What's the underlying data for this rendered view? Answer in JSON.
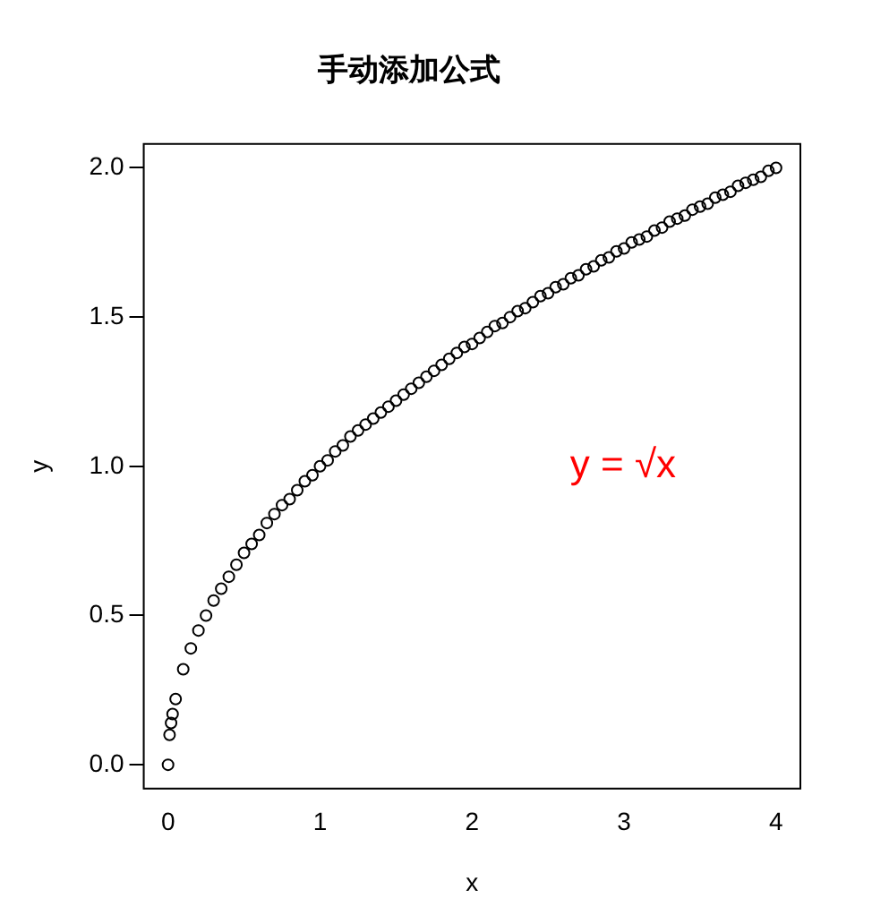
{
  "chart_data": {
    "type": "scatter",
    "title": "手动添加公式",
    "xlabel": "x",
    "ylabel": "y",
    "x": [
      0,
      0.01,
      0.02,
      0.03,
      0.05,
      0.1,
      0.15,
      0.2,
      0.25,
      0.3,
      0.35,
      0.4,
      0.45,
      0.5,
      0.55,
      0.6,
      0.65,
      0.7,
      0.75,
      0.8,
      0.85,
      0.9,
      0.95,
      1,
      1.05,
      1.1,
      1.15,
      1.2,
      1.25,
      1.3,
      1.35,
      1.4,
      1.45,
      1.5,
      1.55,
      1.6,
      1.65,
      1.7,
      1.75,
      1.8,
      1.85,
      1.9,
      1.95,
      2,
      2.05,
      2.1,
      2.15,
      2.2,
      2.25,
      2.3,
      2.35,
      2.4,
      2.45,
      2.5,
      2.55,
      2.6,
      2.65,
      2.7,
      2.75,
      2.8,
      2.85,
      2.9,
      2.95,
      3,
      3.05,
      3.1,
      3.15,
      3.2,
      3.25,
      3.3,
      3.35,
      3.4,
      3.45,
      3.5,
      3.55,
      3.6,
      3.65,
      3.7,
      3.75,
      3.8,
      3.85,
      3.9,
      3.95,
      4
    ],
    "series": [
      {
        "color": "#000000",
        "values": [
          0,
          0.1,
          0.14,
          0.17,
          0.22,
          0.32,
          0.39,
          0.45,
          0.5,
          0.55,
          0.59,
          0.63,
          0.67,
          0.71,
          0.74,
          0.77,
          0.81,
          0.84,
          0.87,
          0.89,
          0.92,
          0.95,
          0.97,
          1,
          1.02,
          1.05,
          1.07,
          1.1,
          1.12,
          1.14,
          1.16,
          1.18,
          1.2,
          1.22,
          1.24,
          1.26,
          1.28,
          1.3,
          1.32,
          1.34,
          1.36,
          1.38,
          1.4,
          1.41,
          1.43,
          1.45,
          1.47,
          1.48,
          1.5,
          1.52,
          1.53,
          1.55,
          1.57,
          1.58,
          1.6,
          1.61,
          1.63,
          1.64,
          1.66,
          1.67,
          1.69,
          1.7,
          1.72,
          1.73,
          1.75,
          1.76,
          1.77,
          1.79,
          1.8,
          1.82,
          1.83,
          1.84,
          1.86,
          1.87,
          1.88,
          1.9,
          1.91,
          1.92,
          1.94,
          1.95,
          1.96,
          1.97,
          1.99,
          2
        ]
      }
    ],
    "marker": "circle",
    "xlim": [
      -0.16,
      4.16
    ],
    "xticks": [
      0,
      1,
      2,
      3,
      4
    ],
    "ylim": [
      -0.08,
      2.08
    ],
    "yticks": [
      {
        "value": 0,
        "label": "0.0"
      },
      {
        "value": 0.5,
        "label": "0.5"
      },
      {
        "value": 1,
        "label": "1.0"
      },
      {
        "value": 1.5,
        "label": "1.5"
      },
      {
        "value": 2,
        "label": "2.0"
      }
    ],
    "annotations": [
      "y = √x"
    ]
  }
}
